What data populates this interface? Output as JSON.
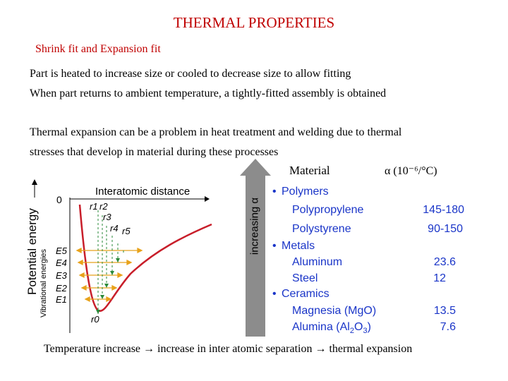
{
  "title": "THERMAL PROPERTIES",
  "subtitle": "Shrink fit and Expansion fit",
  "paragraphs": [
    "Part is heated to increase size or cooled to decrease size to allow fitting",
    "When part returns to ambient temperature, a tightly‑fitted assembly is obtained",
    "Thermal expansion can be a problem in heat treatment and welding due to thermal",
    "stresses that develop in material during these processes"
  ],
  "table": {
    "material_header": "Material",
    "alpha_symbol": "α",
    "alpha_unit": "(10⁻⁶/°C)",
    "arrow_label": "increasing α",
    "groups": [
      {
        "category": "Polymers",
        "items": [
          {
            "name": "Polypropylene",
            "value": "145-180"
          },
          {
            "name": "Polystyrene",
            "value": "90-150"
          }
        ]
      },
      {
        "category": "Metals",
        "items": [
          {
            "name": "Aluminum",
            "value": "23.6"
          },
          {
            "name": "Steel",
            "value": "12"
          }
        ]
      },
      {
        "category": "Ceramics",
        "items": [
          {
            "name": "Magnesia (MgO)",
            "value": "13.5"
          },
          {
            "name": "Alumina (Al2O3)",
            "value": "7.6"
          }
        ]
      }
    ]
  },
  "diagram": {
    "y_axis_label": "Potential energy",
    "curve_label": "Interatomic distance",
    "zero_label": "0",
    "vib_label": "Vibrational energies",
    "energy_levels": [
      "E5",
      "E4",
      "E3",
      "E2",
      "E1"
    ],
    "radii": [
      "r1",
      "r2",
      "r3",
      "r4",
      "r5"
    ],
    "r0_label": "r0",
    "colors": {
      "curve": "#c81e2a",
      "arrows": "#e8a21a",
      "dashed": "#2a8a3a"
    }
  },
  "footer": "Temperature increase → increase in inter atomic separation → thermal expansion"
}
